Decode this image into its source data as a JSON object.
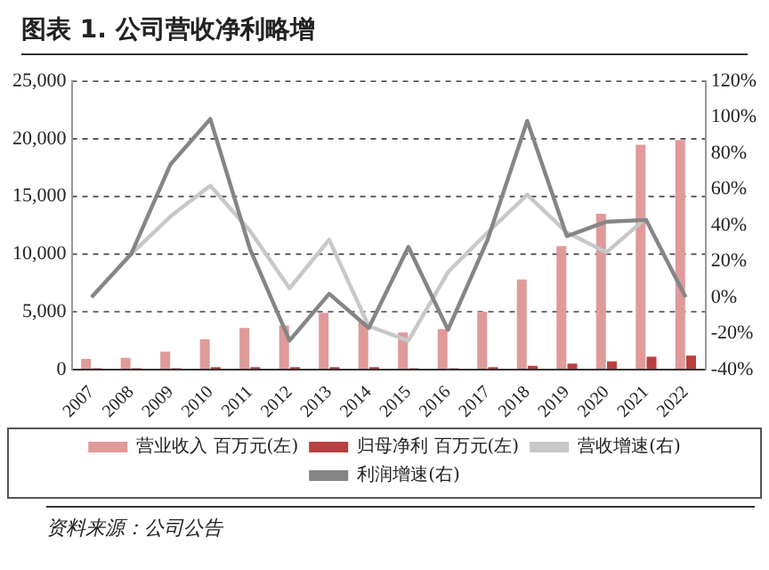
{
  "chart_data": {
    "type": "bar",
    "title": "图表 1. 公司营收净利略增",
    "categories": [
      "2007",
      "2008",
      "2009",
      "2010",
      "2011",
      "2012",
      "2013",
      "2014",
      "2015",
      "2016",
      "2017",
      "2018",
      "2019",
      "2020",
      "2021",
      "2022"
    ],
    "series": [
      {
        "name": "营业收入 百万元(左)",
        "color": "#e09a9a",
        "values": [
          900,
          1000,
          1550,
          2600,
          3600,
          3800,
          4900,
          4200,
          3200,
          3500,
          5000,
          7800,
          10700,
          13500,
          19500,
          19900
        ]
      },
      {
        "name": "归母净利 百万元(左)",
        "color": "#b94040",
        "values": [
          100,
          100,
          100,
          200,
          200,
          200,
          200,
          200,
          100,
          100,
          200,
          300,
          500,
          700,
          1100,
          1200
        ]
      },
      {
        "name": "营收增速(右)",
        "type": "line",
        "axis": "y2",
        "color": "#c8c8c8",
        "values": [
          null,
          24,
          45,
          62,
          37,
          5,
          32,
          -16,
          -24,
          14,
          36,
          57,
          36,
          25,
          44,
          null
        ]
      },
      {
        "name": "利润增速(右)",
        "type": "line",
        "axis": "y2",
        "color": "#858585",
        "values": [
          0,
          24,
          74,
          99,
          27,
          -24,
          2,
          -17,
          28,
          -18,
          32,
          98,
          34,
          42,
          43,
          0
        ]
      }
    ],
    "ylim": [
      0,
      25000
    ],
    "yticks": [
      {
        "value": 0,
        "label": "0"
      },
      {
        "value": 5000,
        "label": "5,000"
      },
      {
        "value": 10000,
        "label": "10,000"
      },
      {
        "value": 15000,
        "label": "15,000"
      },
      {
        "value": 20000,
        "label": "20,000"
      },
      {
        "value": 25000,
        "label": "25,000"
      }
    ],
    "y2lim": [
      -40,
      120
    ],
    "y2ticks": [
      {
        "value": -40,
        "label": "-40%"
      },
      {
        "value": -20,
        "label": "-20%"
      },
      {
        "value": 0,
        "label": "0%"
      },
      {
        "value": 20,
        "label": "20%"
      },
      {
        "value": 40,
        "label": "40%"
      },
      {
        "value": 60,
        "label": "60%"
      },
      {
        "value": 80,
        "label": "80%"
      },
      {
        "value": 100,
        "label": "100%"
      },
      {
        "value": 120,
        "label": "120%"
      }
    ],
    "grid": "y",
    "legend": "bottom",
    "marker": "none",
    "line_style": "solid",
    "annotations": [
      "资料来源：公司公告"
    ]
  }
}
